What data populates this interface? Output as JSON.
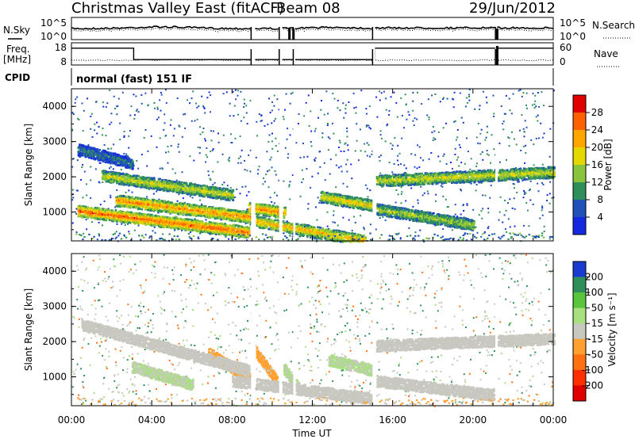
{
  "header": {
    "station": "Christmas Valley East (fitACF)",
    "beam": "Beam 08",
    "date": "29/Jun/2012"
  },
  "chart_data": [
    {
      "type": "line",
      "panel": "noise",
      "left_label": "N.Sky",
      "right_label": "N.Search",
      "left_ticks": [
        "10^5",
        "10^0"
      ],
      "right_ticks": [
        "10^5",
        "10^0"
      ]
    },
    {
      "type": "line",
      "panel": "frequency",
      "left_label_1": "Freq.",
      "left_label_2": "[MHz]",
      "right_label": "Nave",
      "left_ticks": [
        "18",
        "8"
      ],
      "right_ticks": [
        "60",
        "0"
      ],
      "freq_steps": [
        {
          "start": 0.0,
          "end": 3.1,
          "value": 16
        },
        {
          "start": 3.1,
          "end": 15.1,
          "value": 10
        },
        {
          "start": 15.1,
          "end": 24.0,
          "value": 16
        }
      ]
    },
    {
      "type": "table",
      "panel": "cpid",
      "label": "CPID",
      "value": "normal (fast) 151 IF"
    },
    {
      "type": "heatmap",
      "panel": "power",
      "ylabel": "Slant Range [km]",
      "yticks": [
        "4000",
        "3000",
        "2000",
        "1000"
      ],
      "ylim": [
        180,
        4500
      ],
      "colorbar_label": "Power [dB]",
      "colorbar_ticks": [
        "28",
        "24",
        "20",
        "16",
        "12",
        "8",
        "4"
      ],
      "colorbar_colors": [
        "#e00000",
        "#ff6000",
        "#ffa500",
        "#e4d800",
        "#8ac43c",
        "#2f8f5a",
        "#2050b8",
        "#1428e0"
      ],
      "clim": [
        0,
        32
      ],
      "bands": [
        {
          "t": [
            0.3,
            8.8
          ],
          "r_start": 1050,
          "r_end": 450,
          "level": 24
        },
        {
          "t": [
            2.2,
            9.2
          ],
          "r_start": 1350,
          "r_end": 850,
          "level": 22
        },
        {
          "t": [
            8.8,
            10.6
          ],
          "r_start": 1150,
          "r_end": 1000,
          "level": 22
        },
        {
          "t": [
            9.2,
            14.6
          ],
          "r_start": 750,
          "r_end": 200,
          "level": 20
        },
        {
          "t": [
            1.5,
            8.0
          ],
          "r_start": 2050,
          "r_end": 1500,
          "level": 16
        },
        {
          "t": [
            12.4,
            15.0
          ],
          "r_start": 1450,
          "r_end": 1200,
          "level": 18
        },
        {
          "t": [
            15.0,
            24.0
          ],
          "r_start": 1900,
          "r_end": 2150,
          "level": 16
        },
        {
          "t": [
            15.2,
            20.0
          ],
          "r_start": 1100,
          "r_end": 650,
          "level": 14
        },
        {
          "t": [
            0.3,
            3.0
          ],
          "r_start": 2800,
          "r_end": 2400,
          "level": 8
        }
      ],
      "gaps": [
        [
          8.95,
          9.15
        ],
        [
          10.35,
          10.5
        ],
        [
          11.05,
          11.15
        ],
        [
          15.0,
          15.12
        ],
        [
          21.12,
          21.2
        ]
      ]
    },
    {
      "type": "heatmap",
      "panel": "velocity",
      "ylabel": "Slant Range [km]",
      "yticks": [
        "4000",
        "3000",
        "2000",
        "1000"
      ],
      "ylim": [
        180,
        4500
      ],
      "colorbar_label": "Velocity [m s⁻¹]",
      "colorbar_ticks": [
        "200",
        "100",
        "50",
        "15",
        "-15",
        "-50",
        "-100",
        "-200"
      ],
      "colorbar_colors": [
        "#1a3bd0",
        "#2f8f5a",
        "#5ac43c",
        "#a8e080",
        "#c8c8c0",
        "#ffa030",
        "#ff7010",
        "#ff3000",
        "#e00000"
      ],
      "clim": [
        -250,
        250
      ],
      "bands": [
        {
          "t": [
            6.8,
            8.9
          ],
          "r_start": 1700,
          "r_end": 950,
          "level": -40
        },
        {
          "t": [
            9.2,
            10.2
          ],
          "r_start": 1700,
          "r_end": 900,
          "level": -40
        },
        {
          "t": [
            3.0,
            6.0
          ],
          "r_start": 1300,
          "r_end": 800,
          "level": 30
        },
        {
          "t": [
            10.5,
            11.3
          ],
          "r_start": 1300,
          "r_end": 700,
          "level": 30
        },
        {
          "t": [
            12.8,
            15.0
          ],
          "r_start": 1500,
          "r_end": 1200,
          "level": 30
        },
        {
          "t": [
            0.5,
            8.8
          ],
          "r_start": 2500,
          "r_end": 1200,
          "level": 0
        },
        {
          "t": [
            8.0,
            15.0
          ],
          "r_start": 900,
          "r_end": 400,
          "level": 0
        },
        {
          "t": [
            15.0,
            24.0
          ],
          "r_start": 1900,
          "r_end": 2100,
          "level": 0
        },
        {
          "t": [
            15.2,
            21.0
          ],
          "r_start": 900,
          "r_end": 500,
          "level": 0
        }
      ],
      "gaps": [
        [
          8.95,
          9.15
        ],
        [
          10.35,
          10.5
        ],
        [
          11.05,
          11.15
        ],
        [
          15.0,
          15.12
        ],
        [
          21.12,
          21.2
        ]
      ]
    }
  ],
  "x_axis": {
    "xlabel": "Time UT",
    "ticks": [
      "00:00",
      "04:00",
      "08:00",
      "12:00",
      "16:00",
      "20:00",
      "00:00"
    ],
    "xlim": [
      0,
      24
    ]
  }
}
